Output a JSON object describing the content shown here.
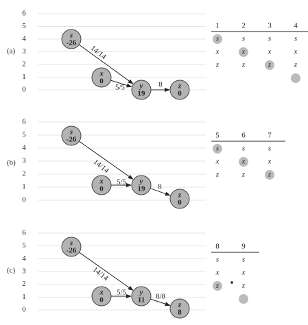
{
  "panels": [
    {
      "label": "(a)",
      "levels": [
        6,
        5,
        4,
        3,
        2,
        1,
        0
      ],
      "nodes": [
        {
          "name": "s",
          "value": -26
        },
        {
          "name": "x",
          "value": 0
        },
        {
          "name": "y",
          "value": 19
        },
        {
          "name": "z",
          "value": 0
        }
      ],
      "edges": [
        {
          "label": "14/14"
        },
        {
          "label": "5/5"
        },
        {
          "label": "8"
        }
      ],
      "table": {
        "columns": [
          {
            "header": 1,
            "cells": [
              "s",
              "x",
              "z"
            ],
            "highlight": 0
          },
          {
            "header": 2,
            "cells": [
              "s",
              "x",
              "z"
            ],
            "highlight": 1
          },
          {
            "header": 3,
            "cells": [
              "s",
              "x",
              "z"
            ],
            "highlight": 2
          },
          {
            "header": 4,
            "cells": [
              "s",
              "x",
              "z"
            ],
            "highlight": 3
          }
        ]
      }
    },
    {
      "label": "(b)",
      "levels": [
        6,
        5,
        4,
        3,
        2,
        1,
        0
      ],
      "nodes": [
        {
          "name": "s",
          "value": -26
        },
        {
          "name": "x",
          "value": 0
        },
        {
          "name": "y",
          "value": 19
        },
        {
          "name": "z",
          "value": 0
        }
      ],
      "edges": [
        {
          "label": "14/14"
        },
        {
          "label": "5/5"
        },
        {
          "label": "8"
        }
      ],
      "table": {
        "columns": [
          {
            "header": 5,
            "cells": [
              "s",
              "x",
              "z"
            ],
            "highlight": 0
          },
          {
            "header": 6,
            "cells": [
              "s",
              "x",
              "z"
            ],
            "highlight": 1
          },
          {
            "header": 7,
            "cells": [
              "s",
              "x",
              "z"
            ],
            "highlight": 2
          }
        ]
      }
    },
    {
      "label": "(c)",
      "levels": [
        6,
        5,
        4,
        3,
        2,
        1,
        0
      ],
      "nodes": [
        {
          "name": "s",
          "value": -26
        },
        {
          "name": "x",
          "value": 0
        },
        {
          "name": "y",
          "value": 11
        },
        {
          "name": "z",
          "value": 8
        }
      ],
      "edges": [
        {
          "label": "14/14"
        },
        {
          "label": "5/5"
        },
        {
          "label": "8/8"
        }
      ],
      "table": {
        "columns": [
          {
            "header": 8,
            "cells": [
              "s",
              "x",
              "z"
            ],
            "highlight": 2
          },
          {
            "header": 9,
            "cells": [
              "s",
              "x",
              "z"
            ],
            "highlight": 3
          }
        ]
      }
    }
  ]
}
